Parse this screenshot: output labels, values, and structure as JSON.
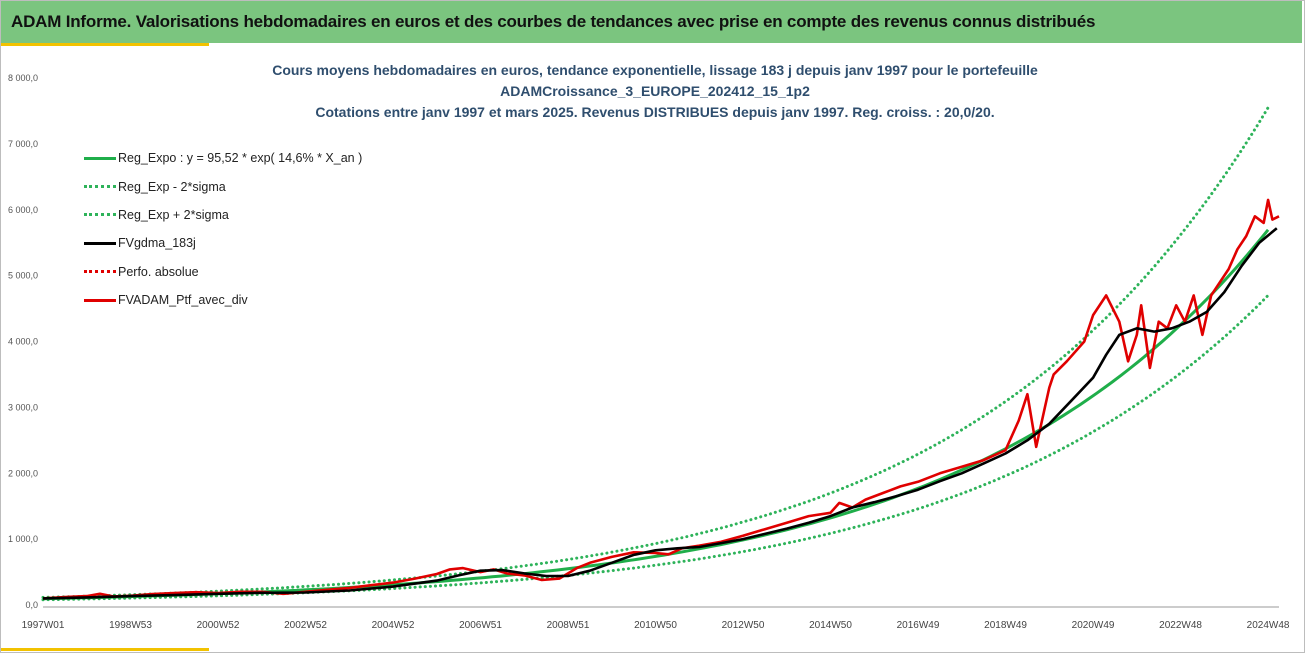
{
  "header": {
    "title": "ADAM Informe. Valorisations hebdomadaires en euros et des courbes de tendances avec prise en compte des revenus connus distribués"
  },
  "colors": {
    "header_bg": "#7bc57f",
    "accent_stripe": "#f2c200",
    "title_text": "#2f4e6e",
    "reg_expo": "#1fae4a",
    "reg_band": "#2eb35a",
    "fvgdma": "#000000",
    "perfo": "#e00000",
    "fvadam": "#e00000"
  },
  "chart_data": {
    "type": "line",
    "title_lines": [
      "Cours moyens hebdomadaires  en euros,  tendance exponentielle, lissage 183 j depuis janv 1997 pour le portefeuille",
      "ADAMCroissance_3_EUROPE_202412_15_1p2",
      "Cotations  entre janv 1997 et mars 2025. Revenus DISTRIBUES depuis janv 1997. Reg. croiss. : 20,0/20."
    ],
    "xlabel": "",
    "ylabel": "",
    "ylim": [
      0,
      8000
    ],
    "y_ticks": [
      "0,0",
      "1 000,0",
      "2 000,0",
      "3 000,0",
      "4 000,0",
      "5 000,0",
      "6 000,0",
      "7 000,0",
      "8 000,0"
    ],
    "y_tick_values": [
      0,
      1000,
      2000,
      3000,
      4000,
      5000,
      6000,
      7000,
      8000
    ],
    "x_range": [
      1997.0,
      2025.25
    ],
    "x_ticks": [
      "1997W01",
      "1998W53",
      "2000W52",
      "2002W52",
      "2004W52",
      "2006W51",
      "2008W51",
      "2010W50",
      "2012W50",
      "2014W50",
      "2016W49",
      "2018W49",
      "2020W49",
      "2022W48",
      "2024W48"
    ],
    "x_tick_values": [
      1997.0,
      1999.0,
      2001.0,
      2003.0,
      2005.0,
      2007.0,
      2009.0,
      2011.0,
      2013.0,
      2015.0,
      2017.0,
      2019.0,
      2021.0,
      2023.0,
      2025.0
    ],
    "legend": [
      {
        "label": "Reg_Expo : y = 95,52 * exp( 14,6% *  X_an )",
        "style": "solid-thick",
        "color_key": "reg_expo"
      },
      {
        "label": "Reg_Exp - 2*sigma",
        "style": "dotted",
        "color_key": "reg_band"
      },
      {
        "label": "Reg_Exp + 2*sigma",
        "style": "dotted",
        "color_key": "reg_band"
      },
      {
        "label": "FVgdma_183j",
        "style": "solid-thick",
        "color_key": "fvgdma"
      },
      {
        "label": "Perfo. absolue",
        "style": "dotted",
        "color_key": "perfo"
      },
      {
        "label": "FVADAM_Ptf_avec_div",
        "style": "solid-thick",
        "color_key": "fvadam"
      }
    ],
    "series": [
      {
        "name": "Reg_Expo",
        "formula": {
          "a": 95.52,
          "b": 0.146
        },
        "x": [
          1997.0,
          1999.0,
          2001.0,
          2003.0,
          2005.0,
          2007.0,
          2009.0,
          2011.0,
          2013.0,
          2015.0,
          2017.0,
          2019.0,
          2021.0,
          2023.0,
          2025.0
        ],
        "values": [
          95,
          127,
          171,
          229,
          306,
          410,
          549,
          735,
          984,
          1317,
          1763,
          2360,
          3159,
          4229,
          5661
        ]
      },
      {
        "name": "Reg_Exp - 2*sigma",
        "x": [
          1997.0,
          2001.0,
          2005.0,
          2009.0,
          2013.0,
          2017.0,
          2019.0,
          2021.0,
          2023.0,
          2025.0
        ],
        "values": [
          80,
          140,
          250,
          450,
          810,
          1460,
          1960,
          2630,
          3520,
          4700
        ]
      },
      {
        "name": "Reg_Exp + 2*sigma",
        "x": [
          1997.0,
          2001.0,
          2005.0,
          2009.0,
          2013.0,
          2017.0,
          2019.0,
          2021.0,
          2023.0,
          2025.0
        ],
        "values": [
          115,
          210,
          380,
          690,
          1260,
          2290,
          3090,
          4170,
          5620,
          7550
        ]
      },
      {
        "name": "FVgdma_183j",
        "x": [
          1997.0,
          1998.0,
          1999.0,
          2000.0,
          2001.0,
          2002.0,
          2003.0,
          2004.0,
          2005.0,
          2006.0,
          2006.5,
          2007.0,
          2007.5,
          2008.0,
          2008.5,
          2009.0,
          2009.5,
          2010.0,
          2010.5,
          2011.0,
          2011.5,
          2012.0,
          2012.5,
          2013.0,
          2013.5,
          2014.0,
          2014.5,
          2015.0,
          2015.5,
          2016.0,
          2016.5,
          2017.0,
          2017.5,
          2018.0,
          2018.5,
          2019.0,
          2019.5,
          2020.0,
          2020.5,
          2021.0,
          2021.3,
          2021.6,
          2022.0,
          2022.4,
          2022.8,
          2023.2,
          2023.6,
          2024.0,
          2024.4,
          2024.8,
          2025.2
        ],
        "values": [
          100,
          115,
          135,
          150,
          170,
          185,
          190,
          220,
          280,
          370,
          450,
          520,
          530,
          480,
          440,
          440,
          520,
          640,
          760,
          830,
          860,
          880,
          940,
          1000,
          1080,
          1160,
          1250,
          1350,
          1480,
          1560,
          1650,
          1750,
          1880,
          2000,
          2150,
          2300,
          2500,
          2750,
          3100,
          3450,
          3800,
          4100,
          4200,
          4150,
          4200,
          4300,
          4450,
          4750,
          5150,
          5500,
          5720
        ]
      },
      {
        "name": "FVADAM_Ptf_avec_div",
        "x": [
          1997.0,
          1997.5,
          1998.0,
          1998.3,
          1998.6,
          1999.0,
          1999.5,
          2000.0,
          2000.5,
          2001.0,
          2001.5,
          2002.0,
          2002.5,
          2003.0,
          2003.5,
          2004.0,
          2004.5,
          2005.0,
          2005.5,
          2006.0,
          2006.3,
          2006.6,
          2007.0,
          2007.3,
          2007.6,
          2008.0,
          2008.4,
          2008.8,
          2009.2,
          2009.5,
          2010.0,
          2010.5,
          2011.0,
          2011.3,
          2011.6,
          2012.0,
          2012.5,
          2013.0,
          2013.5,
          2014.0,
          2014.5,
          2015.0,
          2015.2,
          2015.5,
          2015.8,
          2016.2,
          2016.6,
          2017.0,
          2017.5,
          2018.0,
          2018.5,
          2019.0,
          2019.3,
          2019.5,
          2019.7,
          2019.9,
          2020.0,
          2020.1,
          2020.4,
          2020.8,
          2021.0,
          2021.3,
          2021.6,
          2021.8,
          2022.0,
          2022.1,
          2022.3,
          2022.5,
          2022.7,
          2022.9,
          2023.1,
          2023.3,
          2023.5,
          2023.7,
          2023.9,
          2024.1,
          2024.3,
          2024.5,
          2024.7,
          2024.9,
          2025.0,
          2025.1,
          2025.25
        ],
        "values": [
          100,
          120,
          135,
          170,
          130,
          140,
          165,
          180,
          195,
          180,
          200,
          200,
          170,
          200,
          230,
          260,
          300,
          340,
          400,
          470,
          540,
          560,
          500,
          540,
          480,
          450,
          380,
          400,
          560,
          640,
          730,
          800,
          790,
          770,
          860,
          900,
          960,
          1050,
          1150,
          1250,
          1350,
          1400,
          1550,
          1480,
          1600,
          1700,
          1800,
          1870,
          2000,
          2100,
          2200,
          2350,
          2800,
          3200,
          2400,
          3000,
          3300,
          3500,
          3700,
          4000,
          4400,
          4700,
          4300,
          3700,
          4100,
          4550,
          3600,
          4300,
          4200,
          4550,
          4300,
          4700,
          4100,
          4700,
          4900,
          5100,
          5400,
          5600,
          5900,
          5800,
          6150,
          5850,
          5900
        ]
      }
    ]
  }
}
